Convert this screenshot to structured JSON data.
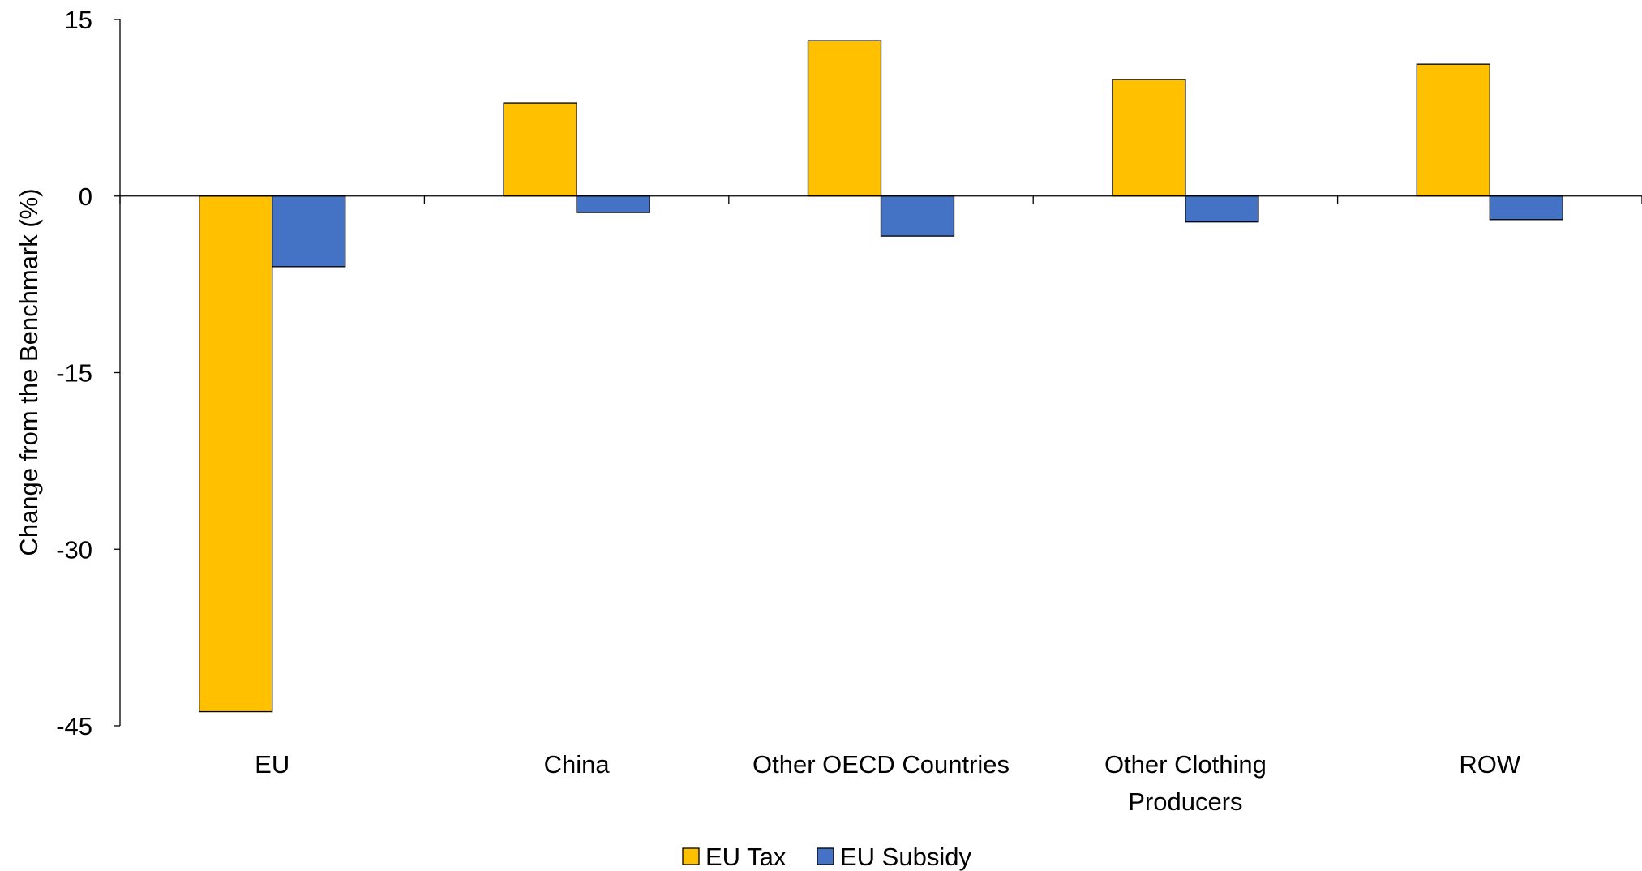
{
  "chart_data": {
    "type": "bar",
    "title": "",
    "xlabel": "",
    "ylabel": "Change from the Benchmark (%)",
    "ylim": [
      -45,
      15
    ],
    "yticks": [
      "15",
      "0",
      "-15",
      "-30",
      "-45"
    ],
    "ytick_values": [
      15,
      0,
      -15,
      -30,
      -45
    ],
    "categories": [
      [
        "EU"
      ],
      [
        "China"
      ],
      [
        "Other OECD Countries"
      ],
      [
        "Other Clothing",
        "Producers"
      ],
      [
        "ROW"
      ]
    ],
    "series": [
      {
        "name": "EU Tax",
        "color": "#FFC000",
        "values": [
          -43.8,
          7.9,
          13.2,
          9.9,
          11.2
        ]
      },
      {
        "name": "EU Subsidy",
        "color": "#4472C4",
        "values": [
          -6.0,
          -1.4,
          -3.4,
          -2.2,
          -2.0
        ]
      }
    ],
    "grid": false,
    "legend": "bottom-center"
  }
}
